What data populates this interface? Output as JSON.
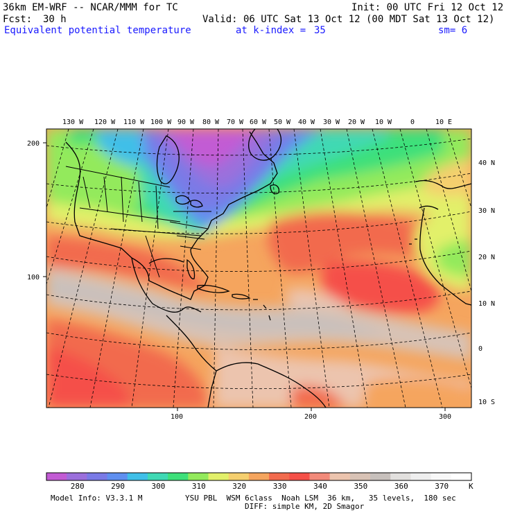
{
  "header": {
    "model": "36km EM-WRF -- NCAR/MMM for TC",
    "init": "Init: 00 UTC Fri 12 Oct 12",
    "fcst_label": "Fcst:",
    "fcst_value": "30 h",
    "valid": "Valid: 06 UTC Sat 13 Oct 12 (00 MDT Sat 13 Oct 12)",
    "field": "Equivalent potential temperature",
    "level": "at k-index =",
    "level_value": "35",
    "smooth": "sm= 6"
  },
  "map": {
    "lon_labels": [
      "130 W",
      "120 W",
      "110 W",
      "100 W",
      "90 W",
      "80 W",
      "70 W",
      "60 W",
      "50 W",
      "40 W",
      "30 W",
      "20 W",
      "10 W",
      "0",
      "10 E"
    ],
    "lat_labels": [
      "40 N",
      "30 N",
      "20 N",
      "10 N",
      "0",
      "10 S"
    ],
    "x_grid_labels": [
      "100",
      "200",
      "300"
    ],
    "y_grid_labels": [
      "200",
      "100"
    ],
    "colors": {
      "background_land_water": "mixed",
      "boundary": "#000000",
      "graticule": "#000000"
    }
  },
  "colorbar": {
    "unit": "K",
    "labels": [
      "280",
      "290",
      "300",
      "310",
      "320",
      "330",
      "340",
      "350",
      "360",
      "370"
    ],
    "colors": [
      "#c25bd4",
      "#9b6fdc",
      "#7a7ae6",
      "#5f8ff0",
      "#3fbfe8",
      "#3fd9b4",
      "#3ee07a",
      "#93ea5c",
      "#e2f06a",
      "#f5cf6e",
      "#f5a55e",
      "#f26b4e",
      "#f55048",
      "#f28a7a",
      "#ecc4ae",
      "#d8c2b5",
      "#c7c0bc",
      "#e2e0de",
      "#efefef",
      "#f8f8f8",
      "#ffffff"
    ]
  },
  "footer": {
    "model_info": "Model Info: V3.3.1 M",
    "physics": "YSU PBL  WSM 6class  Noah LSM  36 km,   35 levels,  180 sec",
    "diff": "DIFF: simple KM, 2D Smagor"
  }
}
